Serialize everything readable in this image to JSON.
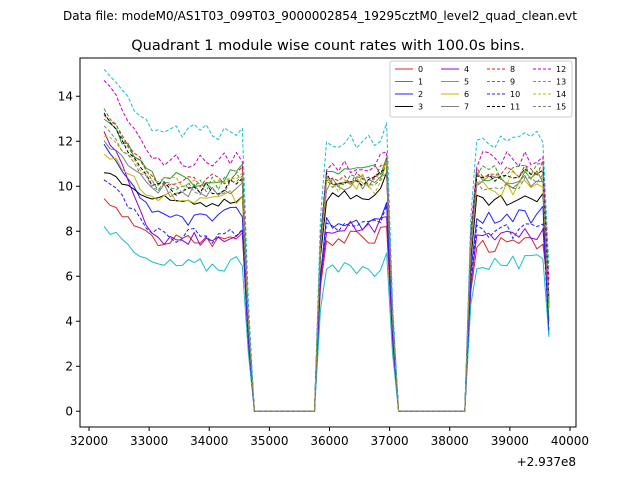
{
  "chart_data": {
    "type": "line",
    "suptitle": "Data file: modeM0/AS1T03_099T03_9000002854_19295cztM0_level2_quad_clean.evt",
    "title": "Quadrant 1 module wise count rates with 100.0s bins.",
    "xlabel": "",
    "ylabel": "",
    "x_offset_label": "+2.937e8",
    "xlim": [
      31850,
      40100
    ],
    "ylim": [
      -0.7,
      15.7
    ],
    "xticks": [
      32000,
      33000,
      34000,
      35000,
      36000,
      37000,
      38000,
      39000,
      40000
    ],
    "yticks": [
      0,
      2,
      4,
      6,
      8,
      10,
      12,
      14
    ],
    "legend_loc": "upper right",
    "legend_ncol": 4,
    "gaps": [
      {
        "start": 34750,
        "end": 35750
      },
      {
        "start": 37150,
        "end": 38250
      }
    ],
    "segments": [
      {
        "x_start": 32250,
        "x_end": 34650
      },
      {
        "x_start": 35850,
        "x_end": 37050
      },
      {
        "x_start": 38350,
        "x_end": 39650
      }
    ],
    "series": [
      {
        "name": "0",
        "color": "#d62728",
        "dashed": false,
        "level": 7.6,
        "seg_levels": [
          7.6,
          7.7,
          7.4
        ],
        "start": 9.3,
        "end": 5.2,
        "jitter": 0.35
      },
      {
        "name": "1",
        "color": "#2ca02c",
        "dashed": false,
        "level": 10.4,
        "seg_levels": [
          10.4,
          10.6,
          10.3
        ],
        "start": 13.0,
        "end": 4.0,
        "jitter": 0.4
      },
      {
        "name": "2",
        "color": "#1f1fff",
        "dashed": false,
        "level": 8.6,
        "seg_levels": [
          8.6,
          8.4,
          8.6
        ],
        "start": 11.7,
        "end": 3.4,
        "jitter": 0.35
      },
      {
        "name": "3",
        "color": "#000000",
        "dashed": false,
        "level": 9.3,
        "seg_levels": [
          9.3,
          9.6,
          9.3
        ],
        "start": 10.6,
        "end": 4.6,
        "jitter": 0.3
      },
      {
        "name": "4",
        "color": "#9400d3",
        "dashed": false,
        "level": 7.6,
        "seg_levels": [
          7.6,
          8.1,
          7.8
        ],
        "start": 12.6,
        "end": 4.8,
        "jitter": 0.35
      },
      {
        "name": "5",
        "color": "#17bec9",
        "dashed": false,
        "level": 6.5,
        "seg_levels": [
          6.5,
          6.3,
          6.6
        ],
        "start": 8.2,
        "end": 3.3,
        "jitter": 0.35
      },
      {
        "name": "6",
        "color": "#c9b400",
        "dashed": false,
        "level": 9.4,
        "seg_levels": [
          9.4,
          10.2,
          9.9
        ],
        "start": 11.6,
        "end": 4.6,
        "jitter": 0.4
      },
      {
        "name": "7",
        "color": "#7f7f7f",
        "dashed": false,
        "level": 9.8,
        "seg_levels": [
          9.8,
          10.1,
          10.2
        ],
        "start": 12.0,
        "end": 5.0,
        "jitter": 0.3
      },
      {
        "name": "8",
        "color": "#d62728",
        "dashed": true,
        "level": 10.3,
        "seg_levels": [
          10.3,
          10.4,
          10.6
        ],
        "start": 13.3,
        "end": 5.5,
        "jitter": 0.35
      },
      {
        "name": "9",
        "color": "#2ca02c",
        "dashed": true,
        "level": 10.1,
        "seg_levels": [
          10.1,
          10.3,
          10.6
        ],
        "start": 13.4,
        "end": 4.8,
        "jitter": 0.35
      },
      {
        "name": "10",
        "color": "#1f1fff",
        "dashed": true,
        "level": 7.8,
        "seg_levels": [
          7.8,
          8.2,
          8.0
        ],
        "start": 10.4,
        "end": 3.6,
        "jitter": 0.35
      },
      {
        "name": "11",
        "color": "#000000",
        "dashed": true,
        "level": 9.9,
        "seg_levels": [
          9.9,
          10.3,
          10.5
        ],
        "start": 13.2,
        "end": 5.0,
        "jitter": 0.3
      },
      {
        "name": "12",
        "color": "#c000c0",
        "dashed": true,
        "level": 11.1,
        "seg_levels": [
          11.1,
          10.9,
          11.2
        ],
        "start": 14.8,
        "end": 5.8,
        "jitter": 0.35
      },
      {
        "name": "13",
        "color": "#17bec9",
        "dashed": true,
        "level": 12.4,
        "seg_levels": [
          12.4,
          12.0,
          12.0
        ],
        "start": 15.1,
        "end": 6.4,
        "jitter": 0.4
      },
      {
        "name": "14",
        "color": "#c9b400",
        "dashed": true,
        "level": 10.2,
        "seg_levels": [
          10.2,
          10.0,
          10.4
        ],
        "start": 12.3,
        "end": 5.2,
        "jitter": 0.35
      },
      {
        "name": "15",
        "color": "#7f7f7f",
        "dashed": true,
        "level": 9.9,
        "seg_levels": [
          9.9,
          10.2,
          10.1
        ],
        "start": 12.6,
        "end": 4.9,
        "jitter": 0.3
      }
    ]
  }
}
